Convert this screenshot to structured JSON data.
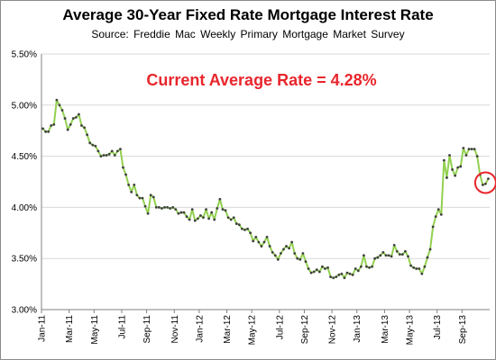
{
  "chart_data": {
    "type": "line",
    "title": "Average 30-Year Fixed Rate Mortgage Interest Rate",
    "subtitle": "Source: Freddie Mac Weekly Primary Mortgage Market Survey",
    "annotation": "Current Average Rate = 4.28%",
    "xlabel": "",
    "ylabel": "",
    "ylim": [
      3.0,
      5.5
    ],
    "y_ticks": [
      "3.00%",
      "3.50%",
      "4.00%",
      "4.50%",
      "5.00%",
      "5.50%"
    ],
    "x_ticks": [
      "Jan-11",
      "Mar-11",
      "May-11",
      "Jul-11",
      "Sep-11",
      "Nov-11",
      "Jan-12",
      "Mar-12",
      "May-12",
      "Jul-12",
      "Sep-12",
      "Nov-12",
      "Jan-13",
      "Mar-13",
      "May-13",
      "Jul-13",
      "Sep-13"
    ],
    "grid": true,
    "legend": "none",
    "colors": {
      "line": "#92d050",
      "marker": "#404040",
      "annotation": "#e8262c",
      "grid": "#d9d9d9"
    },
    "series": [
      {
        "values": [
          4.77,
          4.74,
          4.74,
          4.8,
          4.81,
          5.05,
          5.0,
          4.95,
          4.87,
          4.76,
          4.81,
          4.87,
          4.88,
          4.91,
          4.8,
          4.78,
          4.71,
          4.63,
          4.61,
          4.6,
          4.55,
          4.5,
          4.51,
          4.51,
          4.52,
          4.55,
          4.51,
          4.55,
          4.57,
          4.39,
          4.32,
          4.22,
          4.15,
          4.22,
          4.12,
          4.09,
          4.09,
          4.01,
          3.94,
          4.12,
          4.1,
          4.0,
          4.0,
          3.99,
          4.0,
          4.0,
          3.99,
          4.0,
          3.98,
          3.94,
          3.95,
          3.95,
          3.91,
          3.88,
          3.98,
          3.87,
          3.89,
          3.92,
          3.9,
          3.98,
          3.89,
          3.95,
          3.88,
          3.99,
          4.08,
          3.98,
          3.97,
          3.9,
          3.88,
          3.9,
          3.84,
          3.83,
          3.79,
          3.78,
          3.79,
          3.75,
          3.67,
          3.71,
          3.66,
          3.62,
          3.66,
          3.71,
          3.62,
          3.56,
          3.53,
          3.49,
          3.55,
          3.59,
          3.62,
          3.6,
          3.66,
          3.55,
          3.5,
          3.49,
          3.55,
          3.47,
          3.4,
          3.36,
          3.37,
          3.39,
          3.37,
          3.42,
          3.4,
          3.41,
          3.32,
          3.31,
          3.32,
          3.34,
          3.35,
          3.31,
          3.36,
          3.35,
          3.34,
          3.4,
          3.38,
          3.42,
          3.53,
          3.42,
          3.41,
          3.42,
          3.5,
          3.51,
          3.53,
          3.56,
          3.53,
          3.53,
          3.52,
          3.63,
          3.57,
          3.54,
          3.54,
          3.57,
          3.52,
          3.43,
          3.41,
          3.4,
          3.4,
          3.35,
          3.42,
          3.51,
          3.59,
          3.81,
          3.91,
          3.98,
          3.93,
          4.46,
          4.29,
          4.51,
          4.37,
          4.31,
          4.39,
          4.4,
          4.58,
          4.51,
          4.57,
          4.57,
          4.57,
          4.5,
          4.32,
          4.22,
          4.23,
          4.28
        ]
      }
    ]
  }
}
